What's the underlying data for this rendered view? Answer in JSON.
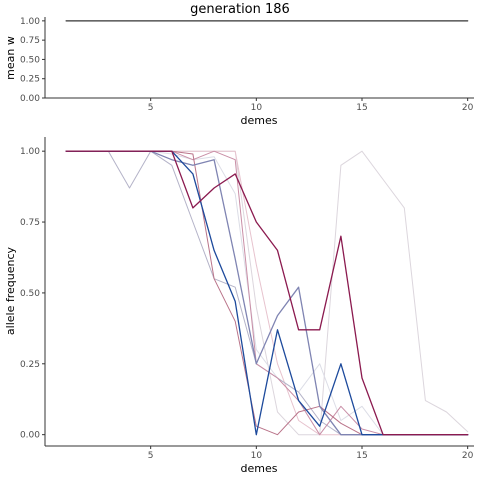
{
  "chart_data": [
    {
      "type": "line",
      "title": "generation 186",
      "xlabel": "demes",
      "ylabel": "mean w",
      "x_ticks": [
        5,
        10,
        15,
        20
      ],
      "y_ticks": [
        "0.00",
        "0.25",
        "0.50",
        "0.75",
        "1.00"
      ],
      "xlim": [
        0,
        20.3
      ],
      "ylim": [
        0,
        1.05
      ],
      "grid": false,
      "series": [
        {
          "color": "#333333",
          "x": [
            1,
            20
          ],
          "y": [
            1.0,
            1.0
          ]
        }
      ]
    },
    {
      "type": "line",
      "xlabel": "demes",
      "ylabel": "allele frequency",
      "x_ticks": [
        5,
        10,
        15,
        20
      ],
      "y_ticks": [
        "0.00",
        "0.25",
        "0.50",
        "0.75",
        "1.00"
      ],
      "xlim": [
        0,
        20.3
      ],
      "ylim": [
        -0.04,
        1.05
      ],
      "grid": false,
      "series": [
        {
          "color": "#dcd6dd",
          "x": [
            1,
            2,
            3,
            4,
            5,
            6,
            7,
            8,
            9,
            10,
            11,
            12,
            13,
            14,
            15,
            16,
            17,
            18,
            19,
            20
          ],
          "y": [
            1,
            1,
            1,
            1,
            1,
            1,
            1,
            1,
            1,
            0.45,
            0.08,
            0,
            0,
            0.95,
            1,
            0.9,
            0.8,
            0.12,
            0.08,
            0.01
          ]
        },
        {
          "color": "#e7c3ce",
          "x": [
            1,
            2,
            3,
            4,
            5,
            6,
            7,
            8,
            9,
            10,
            11,
            12,
            13,
            14,
            15,
            16,
            17,
            18,
            19,
            20
          ],
          "y": [
            1,
            1,
            1,
            1,
            1,
            1,
            1,
            1,
            1,
            0.6,
            0.25,
            0.05,
            0,
            0,
            0,
            0,
            0,
            0,
            0,
            0
          ]
        },
        {
          "color": "#dcdde6",
          "x": [
            1,
            2,
            3,
            4,
            5,
            6,
            7,
            8,
            9,
            10,
            11,
            12,
            13,
            14,
            15,
            16,
            17,
            18,
            19,
            20
          ],
          "y": [
            1,
            1,
            1,
            1,
            1,
            0.99,
            0.97,
            0.98,
            0.85,
            0.3,
            0.2,
            0.15,
            0.25,
            0.05,
            0.1,
            0,
            0,
            0,
            0,
            0
          ]
        },
        {
          "color": "#b4b3c8",
          "x": [
            1,
            2,
            3,
            4,
            5,
            6,
            7,
            8,
            9,
            10,
            11,
            12,
            13,
            14,
            15,
            16,
            17,
            18,
            19,
            20
          ],
          "y": [
            1,
            1,
            1,
            0.87,
            1,
            0.95,
            0.75,
            0.55,
            0.52,
            0.25,
            0.2,
            0.15,
            0.05,
            0,
            0,
            0,
            0,
            0,
            0,
            0
          ]
        },
        {
          "color": "#c98ea6",
          "x": [
            1,
            2,
            3,
            4,
            5,
            6,
            7,
            8,
            9,
            10,
            11,
            12,
            13,
            14,
            15,
            16,
            17,
            18,
            19,
            20
          ],
          "y": [
            1,
            1,
            1,
            1,
            1,
            1,
            0.97,
            1,
            0.97,
            0.25,
            0.2,
            0.12,
            0,
            0.1,
            0.02,
            0,
            0,
            0,
            0,
            0
          ]
        },
        {
          "color": "#b97389",
          "x": [
            1,
            2,
            3,
            4,
            5,
            6,
            7,
            8,
            9,
            10,
            11,
            12,
            13,
            14,
            15,
            16,
            17,
            18,
            19,
            20
          ],
          "y": [
            1,
            1,
            1,
            1,
            1,
            1,
            0.99,
            0.55,
            0.4,
            0.03,
            0,
            0.08,
            0.1,
            0.04,
            0,
            0,
            0,
            0,
            0,
            0
          ]
        },
        {
          "color": "#7f84b2",
          "x": [
            1,
            2,
            3,
            4,
            5,
            6,
            7,
            8,
            9,
            10,
            11,
            12,
            13,
            14,
            15,
            16,
            17,
            18,
            19,
            20
          ],
          "y": [
            1,
            1,
            1,
            1,
            1,
            0.97,
            0.95,
            0.97,
            0.62,
            0.25,
            0.42,
            0.52,
            0.1,
            0,
            0,
            0,
            0,
            0,
            0,
            0
          ]
        },
        {
          "color": "#1d4a9c",
          "x": [
            1,
            2,
            3,
            4,
            5,
            6,
            7,
            8,
            9,
            10,
            11,
            12,
            13,
            14,
            15,
            16,
            17,
            18,
            19,
            20
          ],
          "y": [
            1,
            1,
            1,
            1,
            1,
            1,
            0.92,
            0.65,
            0.47,
            0,
            0.37,
            0.12,
            0.03,
            0.25,
            0,
            0,
            0,
            0,
            0,
            0
          ]
        },
        {
          "color": "#8b1a4f",
          "x": [
            1,
            2,
            3,
            4,
            5,
            6,
            7,
            8,
            9,
            10,
            11,
            12,
            13,
            14,
            15,
            16,
            17,
            18,
            19,
            20
          ],
          "y": [
            1,
            1,
            1,
            1,
            1,
            1,
            0.8,
            0.87,
            0.92,
            0.75,
            0.65,
            0.37,
            0.37,
            0.7,
            0.2,
            0,
            0,
            0,
            0,
            0
          ]
        }
      ]
    }
  ]
}
